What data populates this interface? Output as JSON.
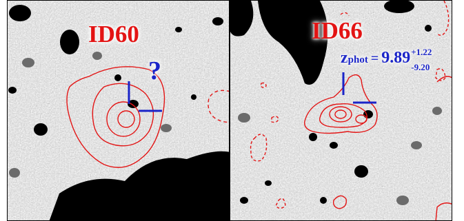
{
  "panels": [
    {
      "id_label": "ID60",
      "annotation": "?"
    },
    {
      "id_label": "ID66",
      "zphot": {
        "symbol": "z",
        "subscript": "phot",
        "equals": "=",
        "value": "9.89",
        "err_plus": "+1.22",
        "err_minus": "-9.20"
      }
    }
  ],
  "colors": {
    "contour": "#e31414",
    "marker": "#1a24c8",
    "label": "#e31414"
  }
}
